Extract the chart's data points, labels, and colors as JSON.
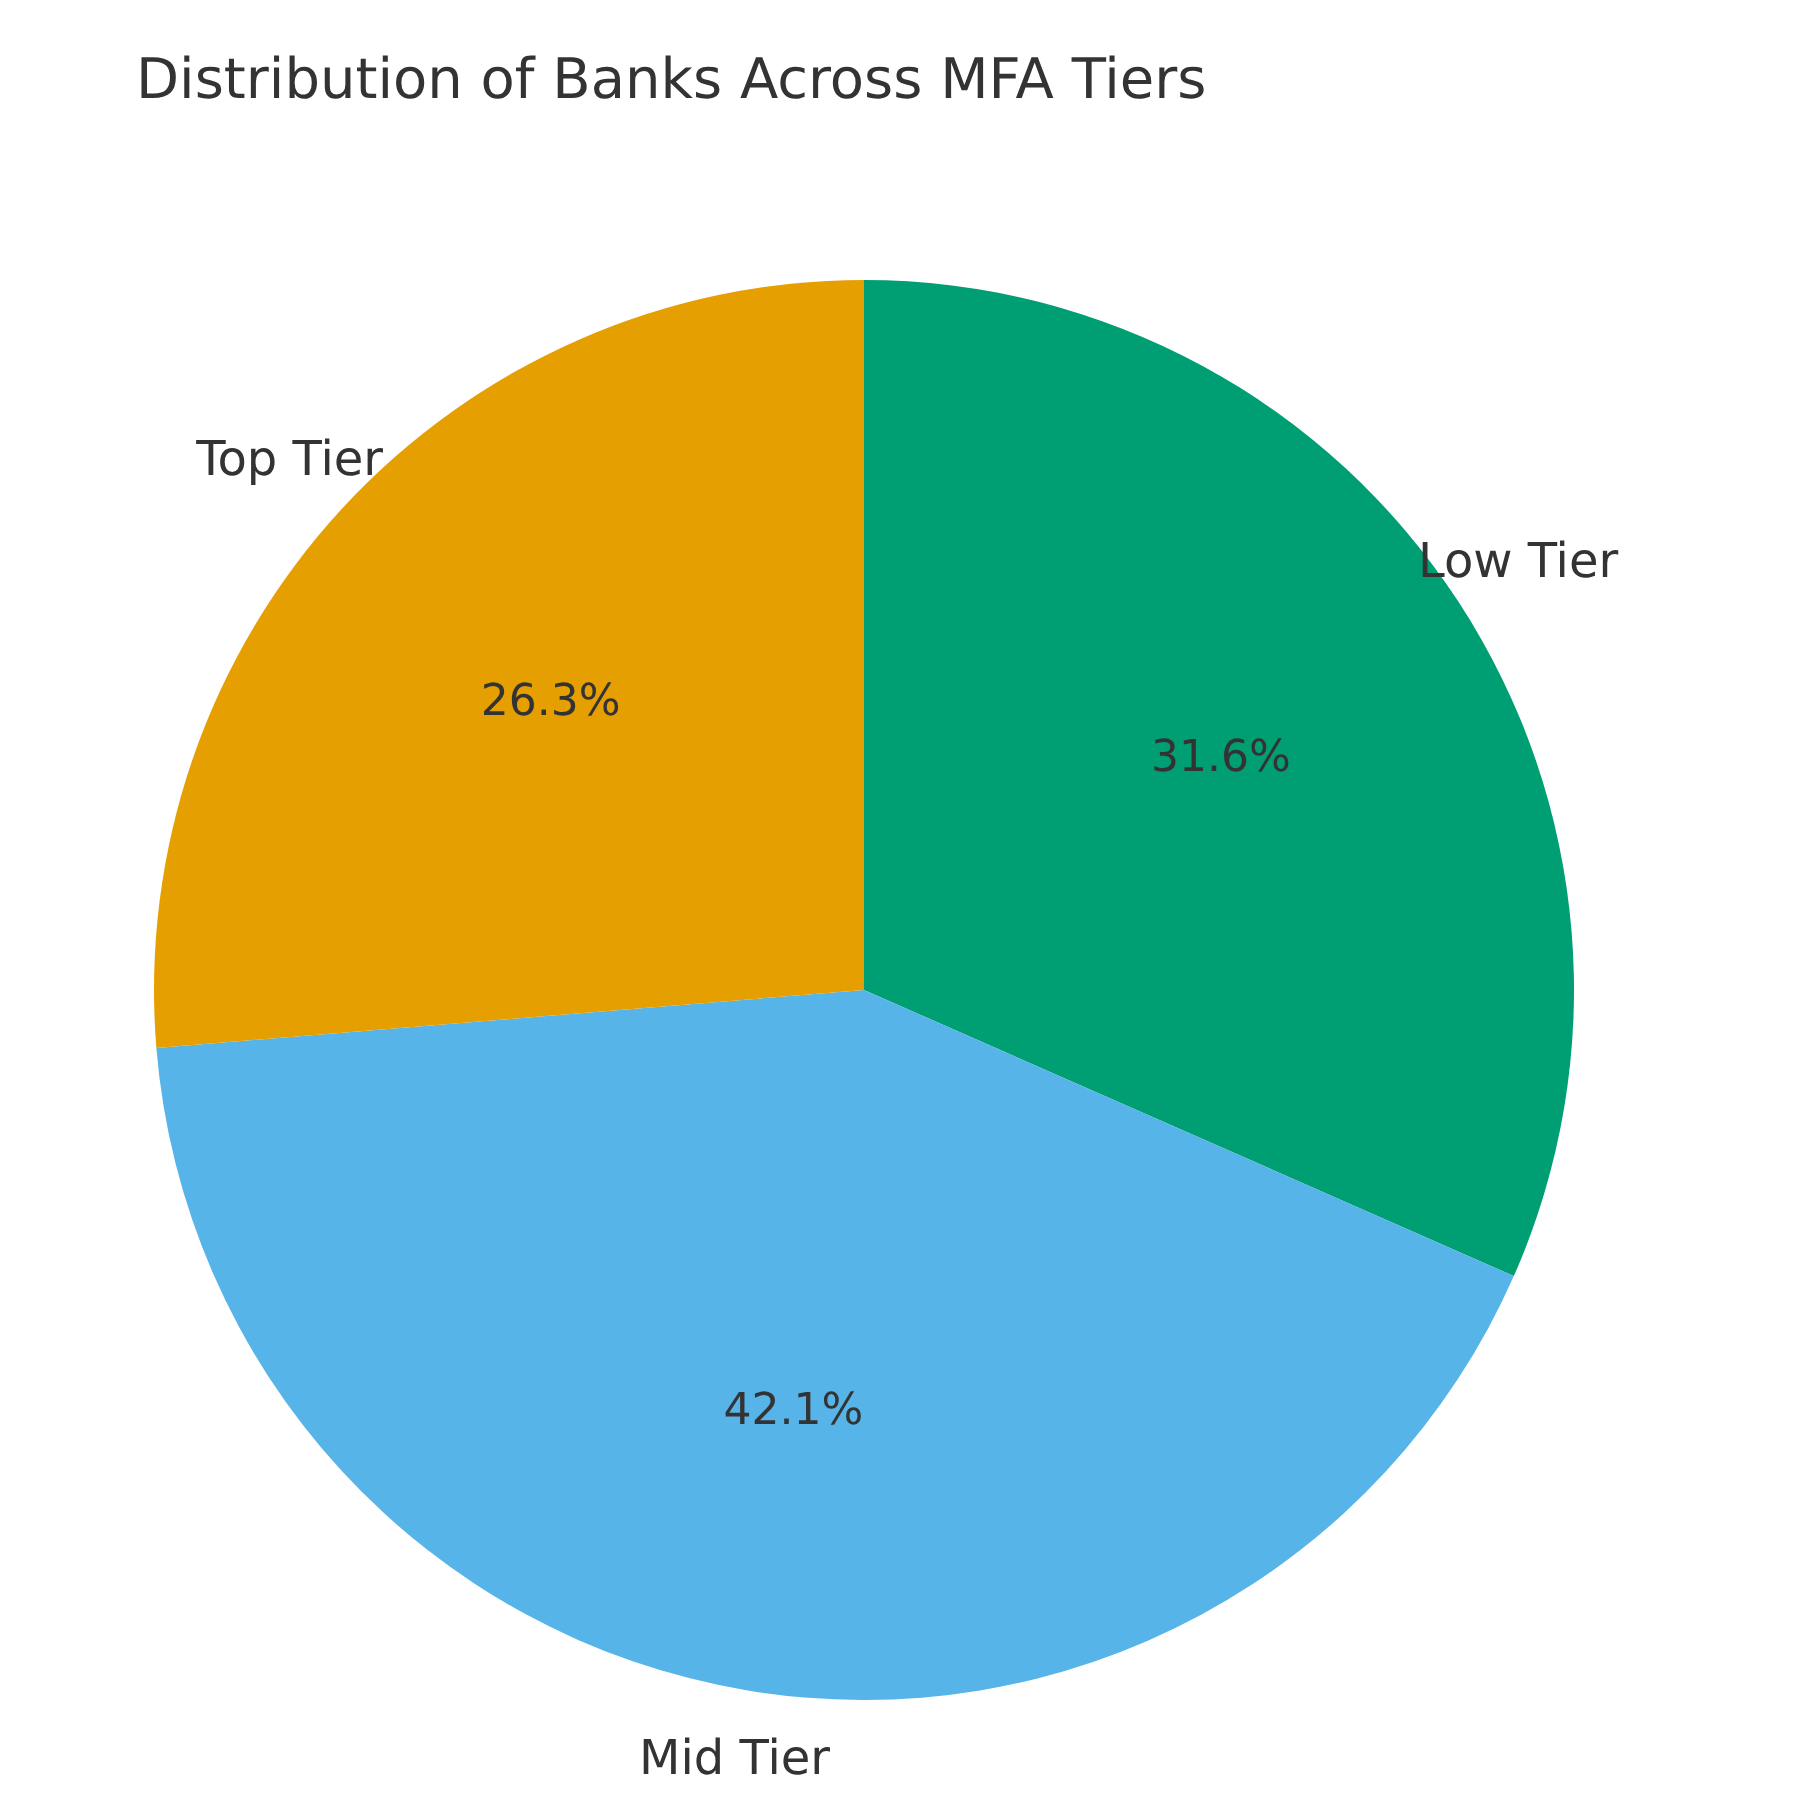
{
  "chart_data": {
    "type": "pie",
    "title": "Distribution of Banks Across MFA Tiers",
    "categories": [
      "Low Tier",
      "Mid Tier",
      "Top Tier"
    ],
    "values": [
      31.6,
      42.1,
      26.3
    ],
    "colors": [
      "#009e73",
      "#56b4e9",
      "#e69f00"
    ],
    "value_labels": [
      "31.6%",
      "42.1%",
      "26.3%"
    ]
  }
}
